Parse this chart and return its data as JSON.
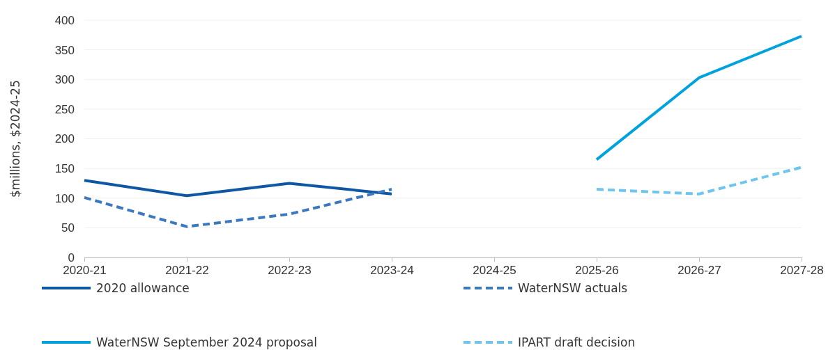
{
  "chart_data": {
    "type": "line",
    "ylabel": "$millions, $2024-25",
    "categories": [
      "2020-21",
      "2021-22",
      "2022-23",
      "2023-24",
      "2024-25",
      "2025-26",
      "2026-27",
      "2027-28"
    ],
    "ylim": [
      0,
      400
    ],
    "yticks": [
      0,
      50,
      100,
      150,
      200,
      250,
      300,
      350,
      400
    ],
    "grid": "y",
    "legend": "bottom",
    "marker": "none",
    "series": [
      {
        "name": "2020 allowance",
        "color": "#0f57a3",
        "line_style": "solid",
        "values": [
          130,
          104,
          125,
          107,
          null,
          null,
          null,
          null
        ]
      },
      {
        "name": "WaterNSW actuals",
        "color": "#3c78bd",
        "line_style": "dashed",
        "values": [
          101,
          52,
          73,
          115,
          null,
          null,
          null,
          null
        ]
      },
      {
        "name": "WaterNSW September 2024 proposal",
        "color": "#00a2dd",
        "line_style": "solid",
        "values": [
          null,
          null,
          null,
          null,
          null,
          165,
          303,
          373
        ]
      },
      {
        "name": "IPART draft decision",
        "color": "#6ec6ee",
        "line_style": "dashed",
        "values": [
          null,
          null,
          null,
          null,
          null,
          115,
          107,
          152
        ]
      }
    ]
  }
}
